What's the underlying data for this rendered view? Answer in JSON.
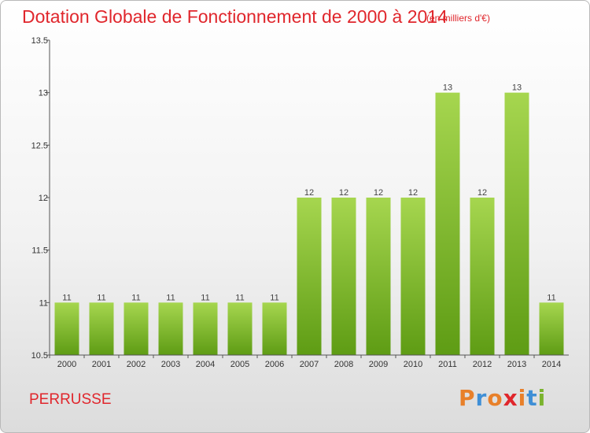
{
  "header": {
    "title": "Dotation Globale de Fonctionnement de 2000 à 2014",
    "unit": "(en milliers d'€)"
  },
  "footer": {
    "commune": "PERRUSSE",
    "logo_text": "Proxiti"
  },
  "colors": {
    "title": "#e0262c",
    "bar_top": "#a6d64f",
    "bar_bottom": "#5e9c14",
    "logo_letters": [
      "#e8802a",
      "#3f8fd6",
      "#e8802a",
      "#e0262c",
      "#e8802a",
      "#3f8fd6",
      "#7ab32e"
    ]
  },
  "chart_data": {
    "type": "bar",
    "title": "Dotation Globale de Fonctionnement de 2000 à 2014",
    "subtitle": "(en milliers d'€)",
    "xlabel": "",
    "ylabel": "",
    "categories": [
      "2000",
      "2001",
      "2002",
      "2003",
      "2004",
      "2005",
      "2006",
      "2007",
      "2008",
      "2009",
      "2010",
      "2011",
      "2012",
      "2013",
      "2014"
    ],
    "values": [
      11,
      11,
      11,
      11,
      11,
      11,
      11,
      12,
      12,
      12,
      12,
      13,
      12,
      13,
      11
    ],
    "data_labels": [
      "11",
      "11",
      "11",
      "11",
      "11",
      "11",
      "11",
      "12",
      "12",
      "12",
      "12",
      "13",
      "12",
      "13",
      "11"
    ],
    "ylim": [
      10.5,
      13.5
    ],
    "yticks": [
      10.5,
      11,
      11.5,
      12,
      12.5,
      13,
      13.5
    ],
    "ytick_labels": [
      "10.5",
      "11",
      "11.5",
      "12",
      "12.5",
      "13",
      "13.5"
    ],
    "grid": false,
    "legend": "none"
  }
}
